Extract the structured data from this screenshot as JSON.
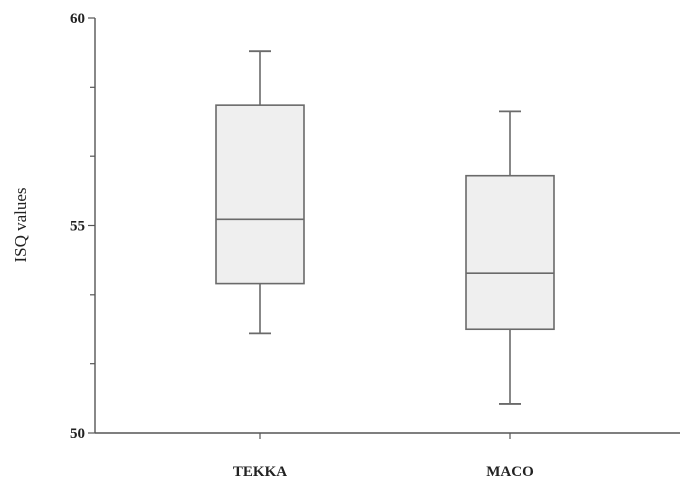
{
  "chart_data": {
    "type": "box",
    "title": "",
    "xlabel": "",
    "ylabel": "ISQ values",
    "ylim": [
      50,
      60
    ],
    "yticks": [
      50,
      55,
      60
    ],
    "yticks_labeled": [
      "50",
      "55",
      "60"
    ],
    "y_minor_ticks": [
      51.67,
      53.33,
      56.67,
      58.33
    ],
    "grid": false,
    "legend": "none",
    "categories": [
      "TEKKA",
      "MACO"
    ],
    "boxes": [
      {
        "category": "TEKKA",
        "min": 52.4,
        "q1": 53.6,
        "median": 55.15,
        "q3": 57.9,
        "max": 59.2
      },
      {
        "category": "MACO",
        "min": 50.7,
        "q1": 52.5,
        "median": 53.85,
        "q3": 56.2,
        "max": 57.75
      }
    ],
    "colors": {
      "box_fill": "#efefef",
      "box_stroke": "#6a6a6a",
      "axis": "#555555"
    }
  }
}
